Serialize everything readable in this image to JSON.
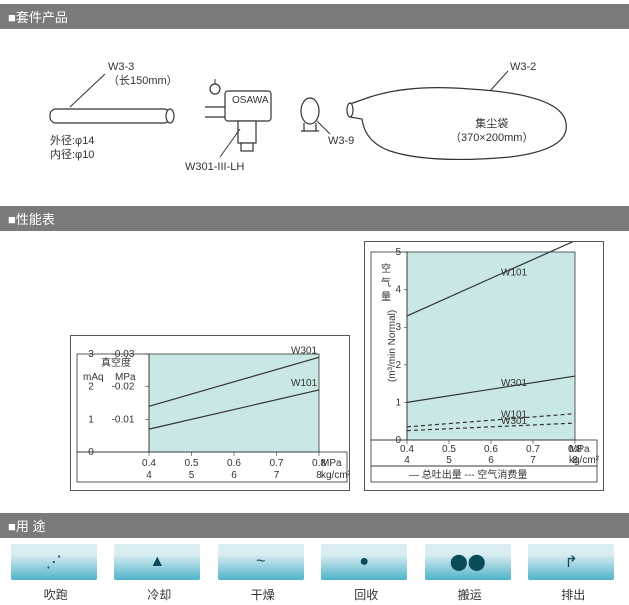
{
  "sections": {
    "kit": "■套件产品",
    "perf": "■性能表",
    "usage": "■用  途"
  },
  "kit": {
    "nozzle": {
      "code": "W3-3",
      "len": "（长150mm）",
      "od": "外径:φ14",
      "id": "内径:φ10"
    },
    "body": {
      "code": "W301-III-LH",
      "brand": "OSAWA"
    },
    "clip": {
      "code": "W3-9"
    },
    "bag": {
      "code": "W3-2",
      "name": "集尘袋",
      "size": "（370×200mm）"
    }
  },
  "chart_left": {
    "y_title": "真空度",
    "y_unit_left": "mAq",
    "y_unit_right": "MPa",
    "y_ticks_left": [
      "3",
      "2",
      "1",
      "0"
    ],
    "y_ticks_right": [
      "-0.03",
      "-0.02",
      "-0.01",
      ""
    ],
    "x_top": [
      "0.4",
      "0.5",
      "0.6",
      "0.7",
      "0.8"
    ],
    "x_unit_top": "MPa",
    "x_bot": [
      "4",
      "5",
      "6",
      "7",
      "8"
    ],
    "x_unit_bot": "kg/cm²",
    "series": {
      "W301": {
        "label": "W301",
        "pts": [
          [
            0.4,
            1.4
          ],
          [
            0.8,
            2.9
          ]
        ]
      },
      "W101": {
        "label": "W101",
        "pts": [
          [
            0.4,
            0.7
          ],
          [
            0.8,
            1.9
          ]
        ]
      }
    }
  },
  "chart_right": {
    "y_title": "空气量",
    "y_unit": "(m³/min Normal)",
    "y_ticks": [
      "5",
      "4",
      "3",
      "2",
      "1",
      "0"
    ],
    "x_top": [
      "0.4",
      "0.5",
      "0.6",
      "0.7",
      "0.8"
    ],
    "x_unit_top": "MPa",
    "x_bot": [
      "4",
      "5",
      "6",
      "7",
      "8"
    ],
    "x_unit_bot": "kg/cm²",
    "legend_solid": "— 总吐出量",
    "legend_dash": "--- 空气消费量",
    "series": {
      "W101a": {
        "label": "W101",
        "pts": [
          [
            0.4,
            3.3
          ],
          [
            0.8,
            5.3
          ]
        ],
        "dash": false
      },
      "W301": {
        "label": "W301",
        "pts": [
          [
            0.4,
            1.0
          ],
          [
            0.8,
            1.7
          ]
        ],
        "dash": false
      },
      "W101b": {
        "label": "W101",
        "pts": [
          [
            0.4,
            0.35
          ],
          [
            0.8,
            0.7
          ]
        ],
        "dash": true
      },
      "W301b": {
        "label": "W301",
        "pts": [
          [
            0.4,
            0.25
          ],
          [
            0.8,
            0.45
          ]
        ],
        "dash": true
      }
    }
  },
  "usage": [
    {
      "label": "吹跑"
    },
    {
      "label": "冷却"
    },
    {
      "label": "干燥"
    },
    {
      "label": "回收"
    },
    {
      "label": "搬运"
    },
    {
      "label": "排出"
    }
  ],
  "colors": {
    "header_bg": "#7a7a7a",
    "plot_bg": "#c9e8e5",
    "usage_grad_top": "#d8ecf1",
    "usage_grad_bot": "#4fb3c9",
    "line": "#333333"
  }
}
